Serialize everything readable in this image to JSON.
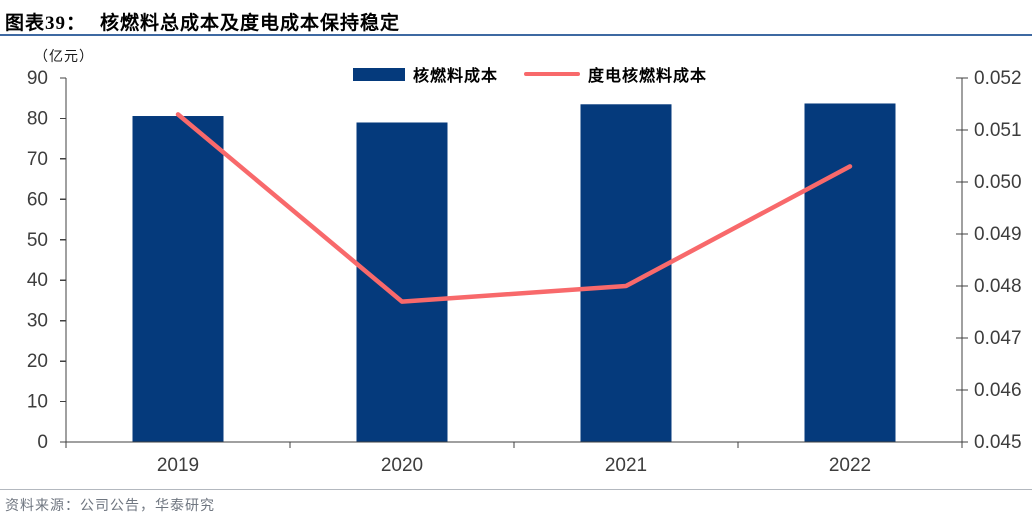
{
  "header": {
    "label": "图表39：",
    "title": "核燃料总成本及度电成本保持稳定"
  },
  "chart_data": {
    "type": "combo",
    "title": "核燃料总成本及度电成本保持稳定",
    "categories": [
      "2019",
      "2020",
      "2021",
      "2022"
    ],
    "series": [
      {
        "name": "核燃料成本",
        "type": "bar",
        "axis": "left",
        "color": "#053a7c",
        "values": [
          80.6,
          79.0,
          83.5,
          83.7
        ]
      },
      {
        "name": "度电核燃料成本",
        "type": "line",
        "axis": "right",
        "color": "#f8696b",
        "values": [
          0.0513,
          0.0477,
          0.048,
          0.0503
        ]
      }
    ],
    "left_axis": {
      "label": "（亿元）",
      "min": 0,
      "max": 90,
      "ticks": [
        "0",
        "10",
        "20",
        "30",
        "40",
        "50",
        "60",
        "70",
        "80",
        "90"
      ]
    },
    "right_axis": {
      "min": 0.045,
      "max": 0.052,
      "ticks": [
        "0.045",
        "0.046",
        "0.047",
        "0.048",
        "0.049",
        "0.050",
        "0.051",
        "0.052"
      ]
    },
    "legend_position": "top",
    "grid": false
  },
  "footer": {
    "source": "资料来源：公司公告，华泰研究"
  },
  "colors": {
    "bar": "#053a7c",
    "line": "#f8696b",
    "title_rule": "#3e69a2",
    "footer_rule": "#b3b8bf",
    "axis": "#404040",
    "tick_text": "#3d3d3d"
  }
}
